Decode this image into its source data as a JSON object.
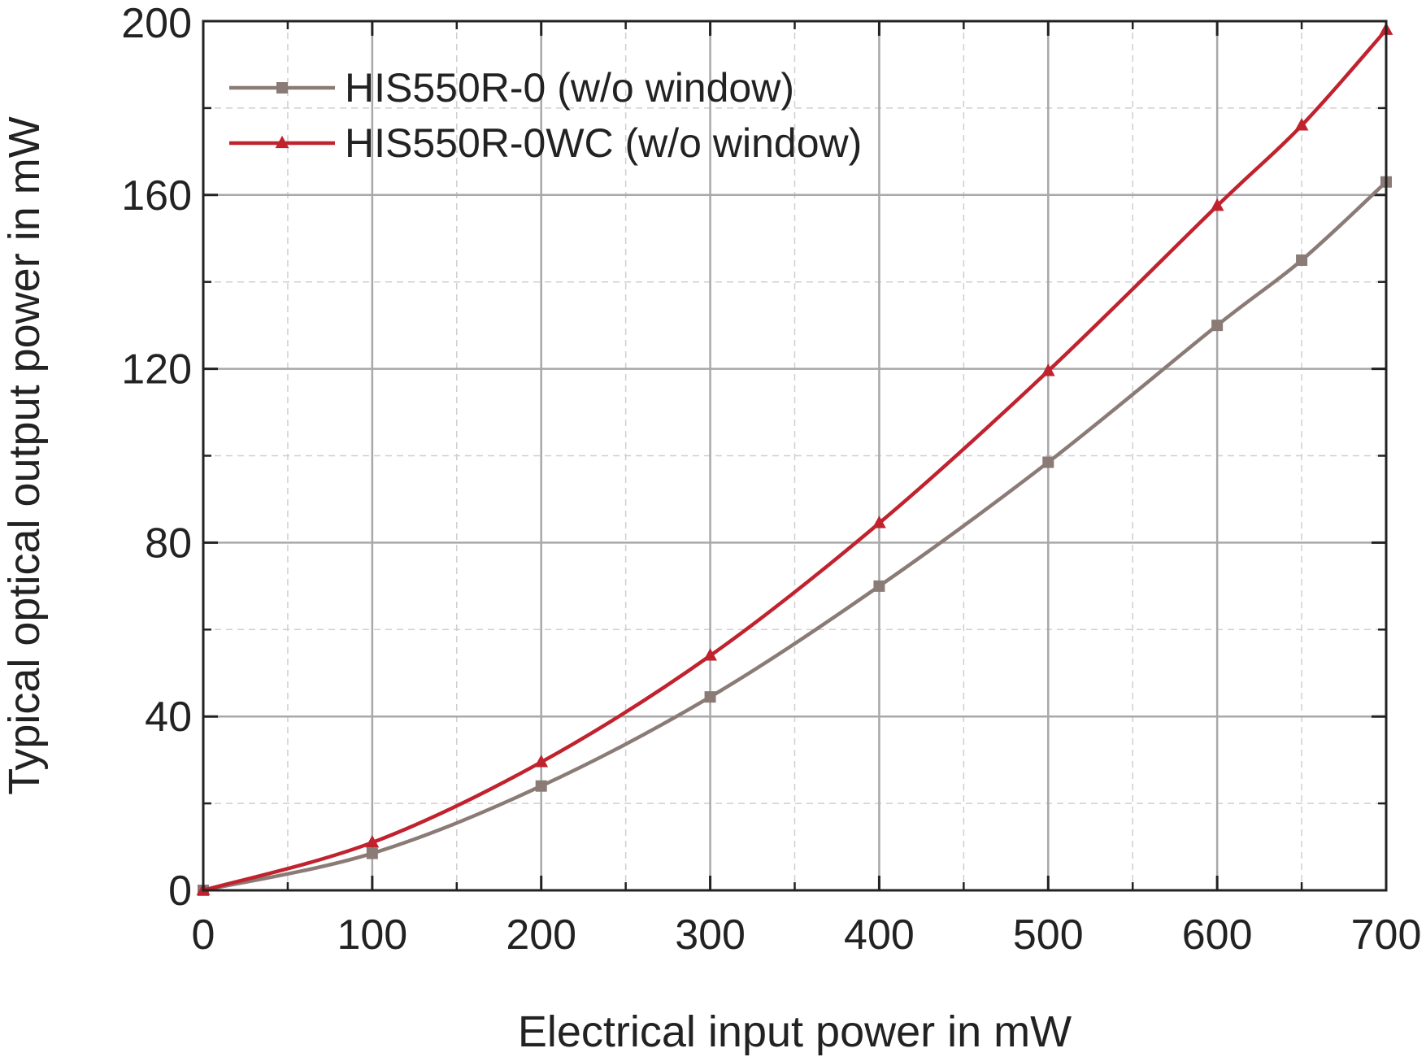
{
  "chart_data": {
    "type": "line",
    "title": "",
    "xlabel": "Electrical input power in mW",
    "ylabel": "Typical optical output power in mW",
    "xlim": [
      0,
      700
    ],
    "ylim": [
      0,
      200
    ],
    "xticks": [
      "0",
      "100",
      "200",
      "300",
      "400",
      "500",
      "600",
      "700"
    ],
    "yticks": [
      "0",
      "40",
      "80",
      "120",
      "160",
      "200"
    ],
    "grid": true,
    "legend_position": "top-left",
    "series": [
      {
        "name": "HIS550R-0 (w/o window)",
        "color": "#8b7b76",
        "marker": "square",
        "x": [
          0,
          100,
          200,
          300,
          400,
          500,
          600,
          650,
          700
        ],
        "y": [
          0,
          8.5,
          24,
          44.5,
          70,
          98.5,
          130,
          145,
          163
        ]
      },
      {
        "name": "HIS550R-0WC (w/o window)",
        "color": "#c0222e",
        "marker": "triangle",
        "x": [
          0,
          100,
          200,
          300,
          400,
          500,
          600,
          650,
          700
        ],
        "y": [
          0,
          11,
          29.5,
          54,
          84.5,
          119.5,
          157.5,
          176,
          198
        ]
      }
    ]
  }
}
